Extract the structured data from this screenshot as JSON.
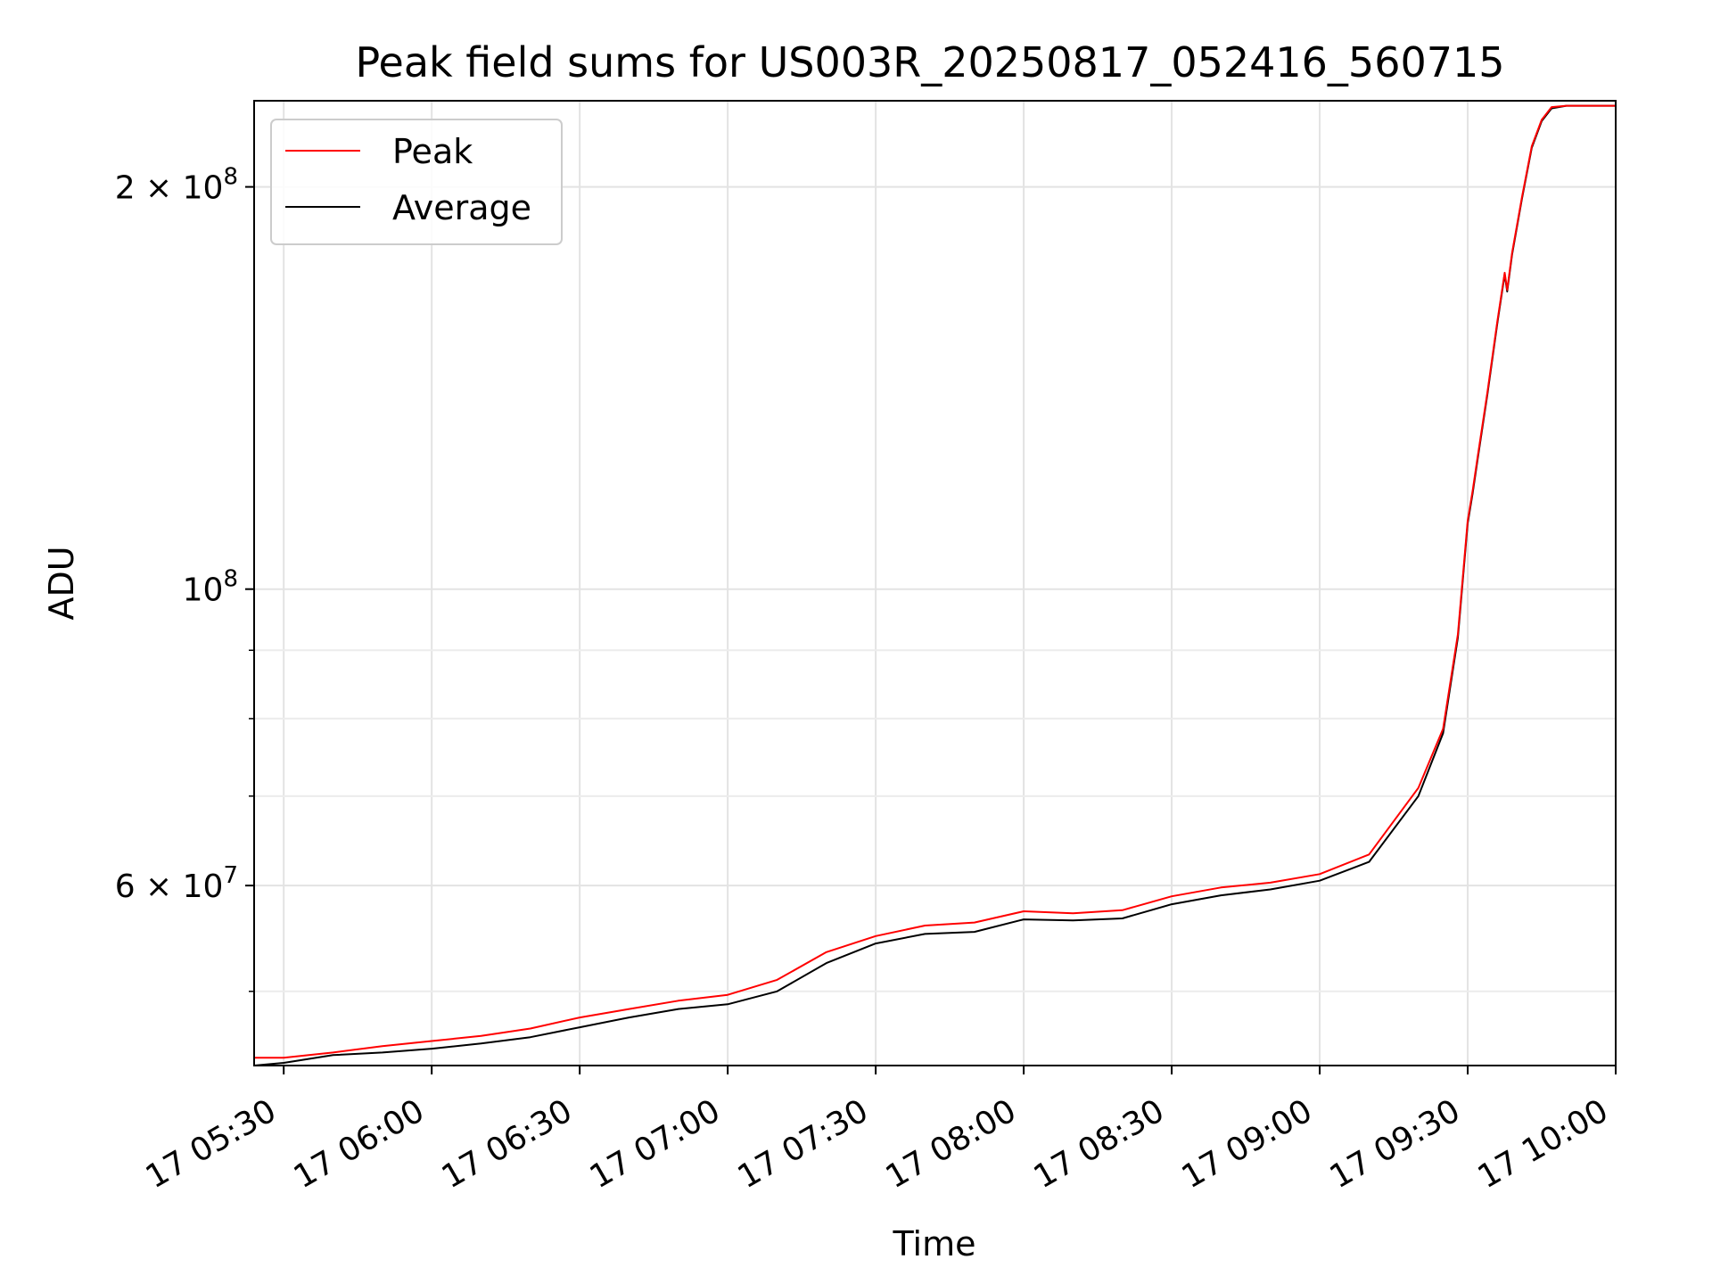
{
  "chart_data": {
    "type": "line",
    "title": "Peak field sums for US003R_20250817_052416_560715",
    "xlabel": "Time",
    "ylabel": "ADU",
    "y_scale": "log",
    "xlim": [
      "2025-08-17T05:24:00",
      "2025-08-17T10:00:00"
    ],
    "ylim": [
      44000000,
      232000000
    ],
    "x_ticks": [
      "17 05:30",
      "17 06:00",
      "17 06:30",
      "17 07:00",
      "17 07:30",
      "17 08:00",
      "17 08:30",
      "17 09:00",
      "17 09:30",
      "17 10:00"
    ],
    "x_tick_values": [
      "2025-08-17T05:30:00",
      "2025-08-17T06:00:00",
      "2025-08-17T06:30:00",
      "2025-08-17T07:00:00",
      "2025-08-17T07:30:00",
      "2025-08-17T08:00:00",
      "2025-08-17T08:30:00",
      "2025-08-17T09:00:00",
      "2025-08-17T09:30:00",
      "2025-08-17T10:00:00"
    ],
    "y_major_ticks": [
      {
        "value": 60000000,
        "mantissa": "6",
        "exponent": "7"
      },
      {
        "value": 100000000,
        "mantissa": "",
        "exponent": "8"
      },
      {
        "value": 200000000,
        "mantissa": "2",
        "exponent": "8"
      }
    ],
    "y_minor_ticks": [
      50000000,
      70000000,
      80000000,
      90000000
    ],
    "grid": true,
    "legend_position": "top-left",
    "series": [
      {
        "name": "Average",
        "color": "#000000",
        "x": [
          "2025-08-17T05:24:00",
          "2025-08-17T05:30:00",
          "2025-08-17T05:40:00",
          "2025-08-17T05:50:00",
          "2025-08-17T06:00:00",
          "2025-08-17T06:10:00",
          "2025-08-17T06:20:00",
          "2025-08-17T06:30:00",
          "2025-08-17T06:40:00",
          "2025-08-17T06:50:00",
          "2025-08-17T07:00:00",
          "2025-08-17T07:10:00",
          "2025-08-17T07:20:00",
          "2025-08-17T07:30:00",
          "2025-08-17T07:40:00",
          "2025-08-17T07:50:00",
          "2025-08-17T08:00:00",
          "2025-08-17T08:10:00",
          "2025-08-17T08:20:00",
          "2025-08-17T08:30:00",
          "2025-08-17T08:40:00",
          "2025-08-17T08:50:00",
          "2025-08-17T09:00:00",
          "2025-08-17T09:10:00",
          "2025-08-17T09:20:00",
          "2025-08-17T09:25:00",
          "2025-08-17T09:28:00",
          "2025-08-17T09:30:00",
          "2025-08-17T09:31:00",
          "2025-08-17T09:32:00",
          "2025-08-17T09:34:00",
          "2025-08-17T09:36:00",
          "2025-08-17T09:37:30",
          "2025-08-17T09:38:00",
          "2025-08-17T09:39:00",
          "2025-08-17T09:41:00",
          "2025-08-17T09:43:00",
          "2025-08-17T09:45:00",
          "2025-08-17T09:47:00",
          "2025-08-17T09:50:00",
          "2025-08-17T10:00:00"
        ],
        "y": [
          44000000,
          44200000,
          44800000,
          45000000,
          45300000,
          45700000,
          46200000,
          47000000,
          47800000,
          48500000,
          48900000,
          50000000,
          52500000,
          54300000,
          55200000,
          55400000,
          56600000,
          56500000,
          56700000,
          58100000,
          59000000,
          59600000,
          60500000,
          62500000,
          70000000,
          78000000,
          92000000,
          112000000,
          118000000,
          125000000,
          140000000,
          158000000,
          172000000,
          167000000,
          178000000,
          196000000,
          214000000,
          224000000,
          229000000,
          230000000,
          230000000
        ]
      },
      {
        "name": "Peak",
        "color": "#ff0000",
        "x": [
          "2025-08-17T05:24:00",
          "2025-08-17T05:30:00",
          "2025-08-17T05:40:00",
          "2025-08-17T05:50:00",
          "2025-08-17T06:00:00",
          "2025-08-17T06:10:00",
          "2025-08-17T06:20:00",
          "2025-08-17T06:30:00",
          "2025-08-17T06:40:00",
          "2025-08-17T06:50:00",
          "2025-08-17T07:00:00",
          "2025-08-17T07:10:00",
          "2025-08-17T07:20:00",
          "2025-08-17T07:30:00",
          "2025-08-17T07:40:00",
          "2025-08-17T07:50:00",
          "2025-08-17T08:00:00",
          "2025-08-17T08:10:00",
          "2025-08-17T08:20:00",
          "2025-08-17T08:30:00",
          "2025-08-17T08:40:00",
          "2025-08-17T08:50:00",
          "2025-08-17T09:00:00",
          "2025-08-17T09:10:00",
          "2025-08-17T09:20:00",
          "2025-08-17T09:25:00",
          "2025-08-17T09:28:00",
          "2025-08-17T09:30:00",
          "2025-08-17T09:31:00",
          "2025-08-17T09:32:00",
          "2025-08-17T09:34:00",
          "2025-08-17T09:36:00",
          "2025-08-17T09:37:30",
          "2025-08-17T09:38:00",
          "2025-08-17T09:39:00",
          "2025-08-17T09:41:00",
          "2025-08-17T09:43:00",
          "2025-08-17T09:45:00",
          "2025-08-17T09:47:00",
          "2025-08-17T09:50:00",
          "2025-08-17T10:00:00"
        ],
        "y": [
          44600000,
          44600000,
          45000000,
          45500000,
          45900000,
          46300000,
          46900000,
          47800000,
          48500000,
          49200000,
          49700000,
          51000000,
          53500000,
          55000000,
          56000000,
          56300000,
          57400000,
          57200000,
          57500000,
          58900000,
          59800000,
          60300000,
          61200000,
          63300000,
          71000000,
          78600000,
          92500000,
          112500000,
          118500000,
          125500000,
          140500000,
          158500000,
          172500000,
          167500000,
          178500000,
          196500000,
          214500000,
          224500000,
          229500000,
          230000000,
          230000000
        ]
      }
    ]
  }
}
